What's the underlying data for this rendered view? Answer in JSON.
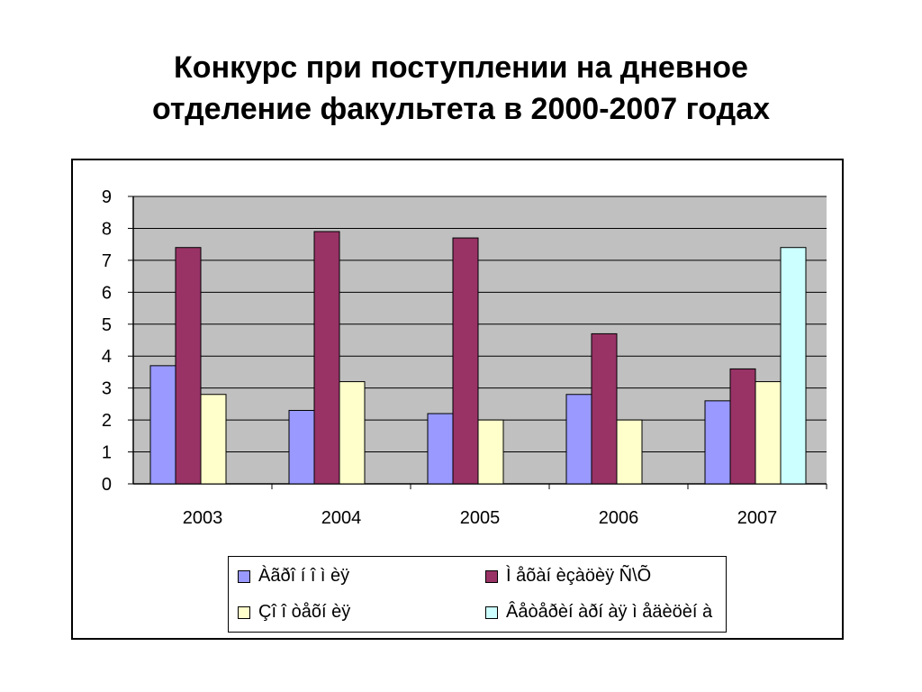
{
  "slide": {
    "title_line1": "Конкурс при поступлении на дневное",
    "title_line2": "отделение факультета в 2000-2007 годах"
  },
  "colors": {
    "plot_background": "#c0c0c0",
    "gridline": "#000000",
    "series": [
      "#9999ff",
      "#993366",
      "#ffffcc",
      "#ccffff"
    ]
  },
  "chart_data": {
    "type": "bar",
    "title": "",
    "xlabel": "",
    "ylabel": "",
    "ylim": [
      0,
      9
    ],
    "yticks": [
      "0",
      "1",
      "2",
      "3",
      "4",
      "5",
      "6",
      "7",
      "8",
      "9"
    ],
    "grid": true,
    "legend_position": "bottom",
    "categories": [
      "2003",
      "2004",
      "2005",
      "2006",
      "2007"
    ],
    "series": [
      {
        "name": "Àãðî í î ì èÿ",
        "values": [
          3.7,
          2.3,
          2.2,
          2.8,
          2.6
        ]
      },
      {
        "name": "Ì åõàí èçàöèÿ Ñ\\Õ",
        "values": [
          7.4,
          7.9,
          7.7,
          4.7,
          3.6
        ]
      },
      {
        "name": "Çî î òåõí èÿ",
        "values": [
          2.8,
          3.2,
          2.0,
          2.0,
          3.2
        ]
      },
      {
        "name": "Âåòåðèí àðí àÿ ì åäèöèí à",
        "values": [
          null,
          null,
          null,
          null,
          7.4
        ]
      }
    ]
  }
}
